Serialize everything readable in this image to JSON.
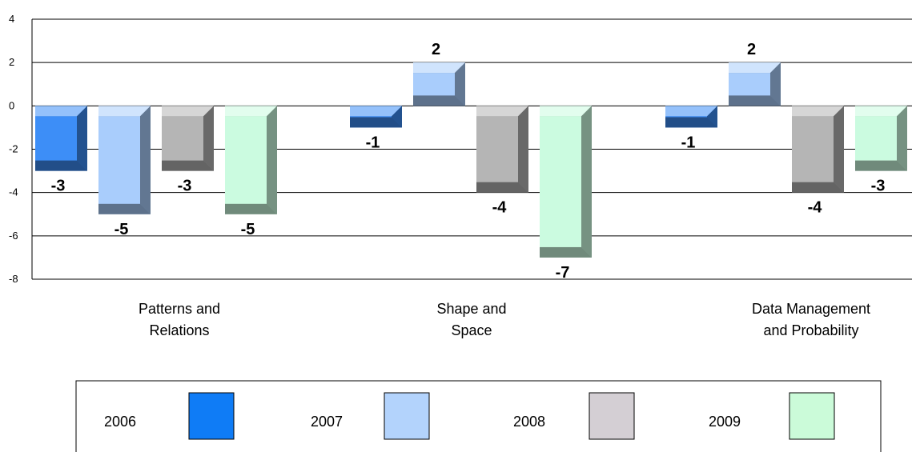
{
  "chart_data": {
    "type": "bar",
    "categories": [
      [
        "Patterns and",
        "Relations"
      ],
      [
        "Shape and",
        "Space"
      ],
      [
        "Data Management",
        "and Probability"
      ]
    ],
    "series": [
      {
        "name": "2006",
        "values": [
          -3,
          -1,
          -1
        ],
        "color": "#3d8ef7"
      },
      {
        "name": "2007",
        "values": [
          -5,
          2,
          2
        ],
        "color": "#a9cdfc"
      },
      {
        "name": "2008",
        "values": [
          -3,
          -4,
          -4
        ],
        "color": "#b5b5b5"
      },
      {
        "name": "2009",
        "values": [
          -5,
          -7,
          -3
        ],
        "color": "#cbfbe0"
      }
    ],
    "legend_swatch_colors": [
      "#0f7cf6",
      "#b3d3fc",
      "#d4cfd4",
      "#cbfbd9"
    ],
    "yticks": [
      4,
      2,
      0,
      -2,
      -4,
      -6,
      -8
    ],
    "ylim": [
      -8,
      4
    ],
    "grid": true,
    "legend_placement": "bottom",
    "title": "",
    "xlabel": "",
    "ylabel": ""
  }
}
